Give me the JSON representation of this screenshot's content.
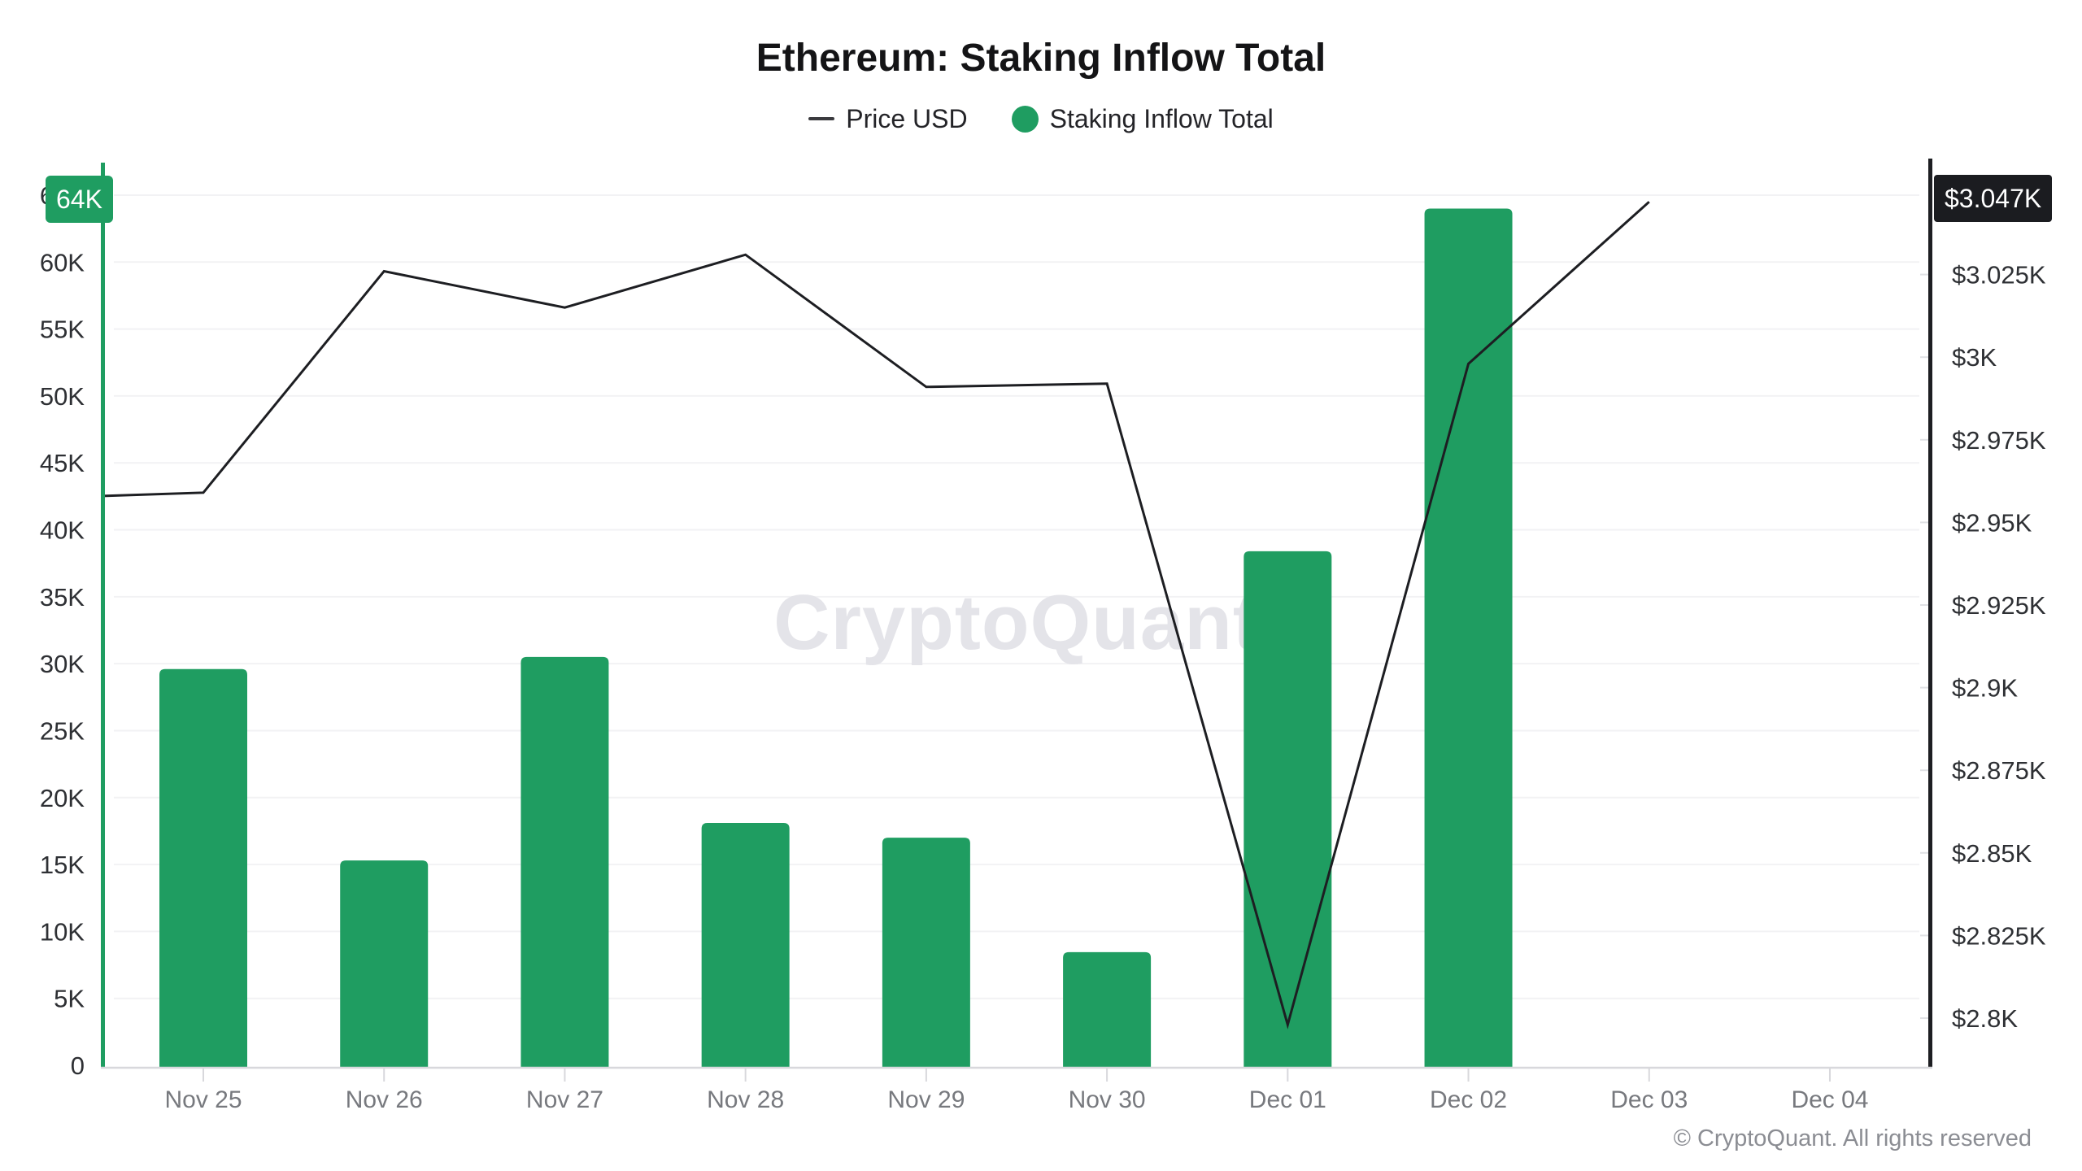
{
  "page": {
    "title": "Ethereum: Staking Inflow Total",
    "watermark": "CryptoQuant",
    "footer": "© CryptoQuant. All rights reserved"
  },
  "legend": [
    {
      "label": "Price USD",
      "marker": "line-dash-icon",
      "color": "#3a3a3e"
    },
    {
      "label": "Staking Inflow Total",
      "marker": "dot-icon",
      "color": "#1f9d61"
    }
  ],
  "badges": {
    "inflow_last": "64K",
    "price_last": "$3.047K"
  },
  "chart_data": {
    "type": "bar+line combo",
    "title": "Ethereum: Staking Inflow Total",
    "categories": [
      "Nov 25",
      "Nov 26",
      "Nov 27",
      "Nov 28",
      "Nov 29",
      "Nov 30",
      "Dec 01",
      "Dec 02",
      "Dec 03",
      "Dec 04"
    ],
    "series": [
      {
        "name": "Price USD",
        "type": "line",
        "axis": "right",
        "color": "#1d1e22",
        "edge_start_value": 2958,
        "values": [
          2959,
          3026,
          3015,
          3031,
          2991,
          2992,
          2798,
          2998,
          3047,
          null
        ],
        "last_value": 3047
      },
      {
        "name": "Staking Inflow Total",
        "type": "bar",
        "axis": "left",
        "color": "#1f9d61",
        "values": [
          29600,
          15300,
          30500,
          18100,
          17000,
          8450,
          38400,
          64000,
          null,
          null
        ],
        "last_value": 64000
      }
    ],
    "left_axis": {
      "title": "Staking Inflow Total",
      "tick_values": [
        0,
        5000,
        10000,
        15000,
        20000,
        25000,
        30000,
        35000,
        40000,
        45000,
        50000,
        55000,
        60000,
        65000
      ],
      "tick_labels": [
        "0",
        "5K",
        "10K",
        "15K",
        "20K",
        "25K",
        "30K",
        "35K",
        "40K",
        "45K",
        "50K",
        "55K",
        "60K",
        "65K"
      ],
      "range": [
        0,
        65000
      ]
    },
    "right_axis": {
      "title": "Price USD",
      "tick_values": [
        2800,
        2825,
        2850,
        2875,
        2900,
        2925,
        2950,
        2975,
        3000,
        3025
      ],
      "tick_labels": [
        "$2.8K",
        "$2.825K",
        "$2.85K",
        "$2.875K",
        "$2.9K",
        "$2.925K",
        "$2.95K",
        "$2.975K",
        "$3K",
        "$3.025K"
      ],
      "range": [
        2800,
        3047
      ]
    },
    "grid": "horizontal only",
    "legend_position": "top-center"
  },
  "colors": {
    "bar_green": "#1f9d61",
    "axis_left_green": "#1f9d61",
    "axis_right_black": "#1d1e22",
    "price_line": "#1d1e22",
    "badge_left_bg": "#1f9d61",
    "badge_right_bg": "#1b1c20",
    "gridline": "#f2f2f4",
    "baseline": "#d8d8dc",
    "right_tick": "#e0e1e4",
    "tick_label": "#2e3034",
    "x_label": "#77797e",
    "watermark": "#e4e4e9",
    "footer": "#8b8d93"
  }
}
